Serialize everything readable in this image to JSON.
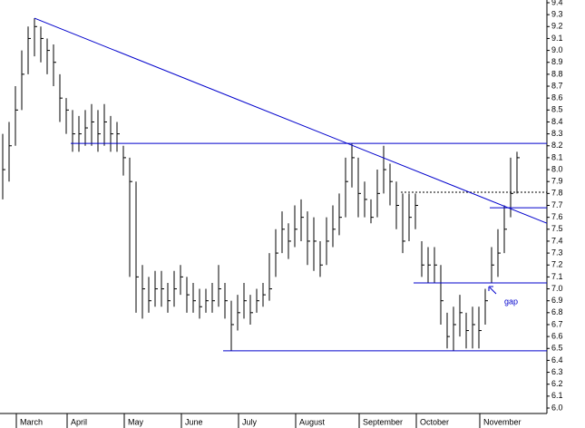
{
  "chart_data": {
    "type": "ohlc",
    "categories": [
      null,
      null,
      null,
      "March",
      null,
      null,
      null,
      null,
      null,
      null,
      null,
      "April",
      null,
      null,
      null,
      null,
      null,
      null,
      null,
      null,
      "May",
      null,
      null,
      null,
      null,
      null,
      null,
      null,
      null,
      "June",
      null,
      null,
      null,
      null,
      null,
      null,
      null,
      null,
      "July",
      null,
      null,
      null,
      null,
      null,
      null,
      null,
      null,
      "August",
      null,
      null,
      null,
      null,
      null,
      null,
      null,
      null,
      null,
      "September",
      null,
      null,
      null,
      null,
      null,
      null,
      null,
      null,
      "October",
      null,
      null,
      null,
      null,
      null,
      null,
      null,
      null,
      null,
      "November",
      null,
      null,
      null,
      null,
      null
    ],
    "high": [
      8.3,
      8.4,
      8.7,
      9.0,
      9.2,
      9.27,
      9.2,
      9.1,
      9.05,
      8.8,
      8.6,
      8.5,
      8.45,
      8.5,
      8.55,
      8.5,
      8.55,
      8.45,
      8.4,
      8.2,
      8.1,
      7.9,
      7.2,
      7.1,
      7.15,
      7.15,
      7.05,
      7.15,
      7.2,
      7.1,
      7.05,
      7.0,
      7.0,
      7.05,
      7.2,
      7.05,
      6.9,
      6.95,
      7.05,
      6.95,
      7.0,
      7.05,
      7.3,
      7.5,
      7.65,
      7.55,
      7.7,
      7.75,
      7.65,
      7.6,
      7.4,
      7.6,
      7.7,
      7.8,
      8.1,
      8.22,
      8.1,
      7.9,
      7.75,
      8.0,
      8.2,
      8.05,
      7.9,
      7.8,
      7.8,
      7.8,
      7.4,
      7.35,
      7.35,
      7.2,
      6.8,
      6.85,
      6.95,
      6.8,
      6.85,
      6.85,
      7.0,
      7.35,
      7.5,
      7.7,
      8.1,
      8.15
    ],
    "low": [
      7.75,
      7.9,
      8.2,
      8.5,
      8.8,
      8.95,
      8.9,
      8.8,
      8.7,
      8.4,
      8.3,
      8.15,
      8.15,
      8.2,
      8.2,
      8.15,
      8.2,
      8.15,
      8.15,
      7.95,
      7.1,
      6.8,
      6.75,
      6.8,
      6.85,
      6.85,
      6.8,
      6.85,
      6.95,
      6.8,
      6.8,
      6.75,
      6.8,
      6.8,
      6.85,
      6.75,
      6.48,
      6.65,
      6.75,
      6.7,
      6.8,
      6.85,
      6.9,
      7.1,
      7.3,
      7.25,
      7.35,
      7.4,
      7.2,
      7.15,
      7.1,
      7.2,
      7.35,
      7.45,
      7.6,
      7.85,
      7.6,
      7.6,
      7.55,
      7.6,
      7.8,
      7.7,
      7.5,
      7.3,
      7.4,
      7.5,
      7.1,
      7.05,
      7.05,
      6.7,
      6.5,
      6.48,
      6.6,
      6.5,
      6.5,
      6.5,
      6.7,
      7.05,
      7.1,
      7.3,
      7.6,
      7.8
    ],
    "close": [
      8.0,
      8.2,
      8.5,
      8.8,
      9.1,
      9.2,
      9.1,
      9.0,
      8.9,
      8.6,
      8.5,
      8.3,
      8.3,
      8.35,
      8.4,
      8.3,
      8.4,
      8.3,
      8.3,
      8.1,
      7.9,
      7.1,
      7.0,
      6.9,
      7.0,
      7.0,
      6.9,
      7.0,
      7.1,
      6.95,
      6.9,
      6.85,
      6.9,
      6.9,
      7.0,
      6.9,
      6.7,
      6.8,
      6.9,
      6.8,
      6.9,
      6.95,
      7.0,
      7.3,
      7.5,
      7.4,
      7.5,
      7.6,
      7.4,
      7.4,
      7.2,
      7.4,
      7.5,
      7.6,
      7.9,
      8.1,
      7.8,
      7.75,
      7.6,
      7.8,
      8.0,
      7.9,
      7.7,
      7.4,
      7.6,
      7.7,
      7.2,
      7.2,
      7.2,
      6.9,
      6.6,
      6.7,
      6.8,
      6.65,
      6.7,
      6.65,
      6.9,
      7.2,
      7.3,
      7.5,
      7.8,
      8.1
    ],
    "color": "#000000",
    "line_color": "#0000cc",
    "levels": [
      8.22,
      7.81,
      7.68,
      7.05,
      6.48
    ],
    "trendline": [
      9.27,
      7.55
    ],
    "annotation": "gap",
    "ylim": [
      6.0,
      9.4
    ],
    "yticks": [
      {
        "value": 6.0,
        "label": "6.0"
      },
      6.1,
      6.2,
      6.3,
      6.4,
      6.5,
      6.6,
      6.7,
      6.8,
      6.9,
      {
        "value": 7.0,
        "label": "7.0"
      },
      7.1,
      7.2,
      7.3,
      7.4,
      7.5,
      7.6,
      7.7,
      7.8,
      7.9,
      {
        "value": 8.0,
        "label": "8.0"
      },
      8.1,
      8.2,
      8.3,
      8.4,
      8.5,
      8.6,
      8.7,
      8.8,
      8.9,
      {
        "value": 9.0,
        "label": "9.0"
      },
      9.1,
      9.2,
      9.3,
      9.4
    ]
  }
}
